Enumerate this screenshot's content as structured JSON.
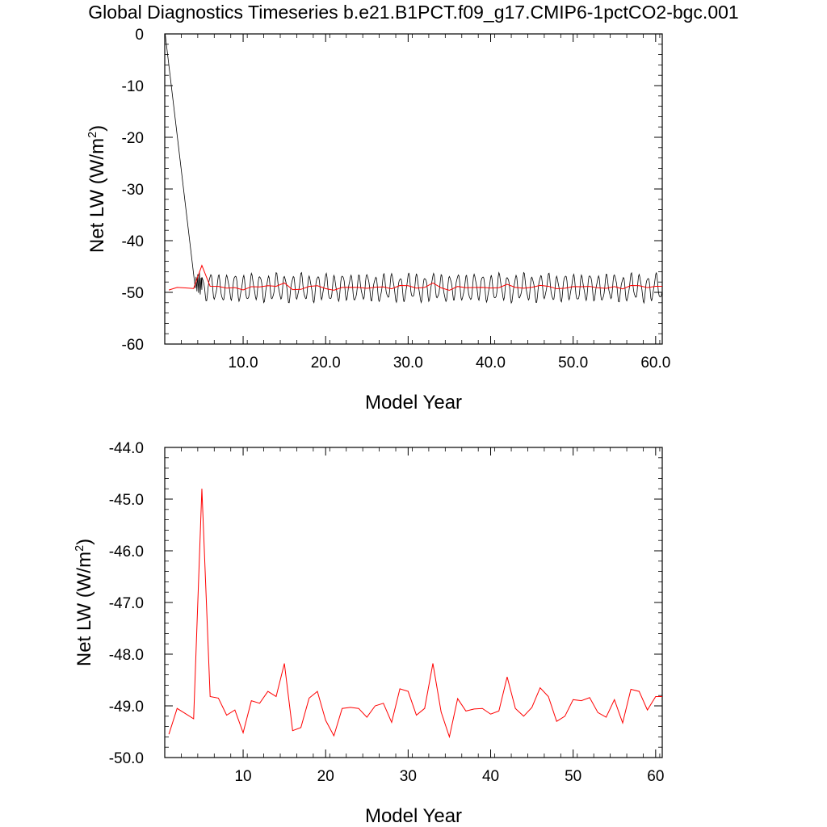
{
  "title": "Global Diagnostics Timeseries b.e21.B1PCT.f09_g17.CMIP6-1pctCO2-bgc.001",
  "colors": {
    "monthly": "#000000",
    "annual": "#ff0000",
    "frame": "#000000"
  },
  "chart_data": [
    {
      "type": "line",
      "xlabel": "Model Year",
      "ylabel": "Net LW (W/m²)",
      "ylabel_parts": {
        "main": "Net LW (W/m",
        "sup": "2",
        "end": ")"
      },
      "xlim": [
        0.5,
        60.8
      ],
      "ylim": [
        -60,
        0
      ],
      "xticks": [
        10,
        20,
        30,
        40,
        50,
        60
      ],
      "xtick_labels": [
        "10.0",
        "20.0",
        "30.0",
        "40.0",
        "50.0",
        "60.0"
      ],
      "yticks": [
        0,
        -10,
        -20,
        -30,
        -40,
        -50,
        -60
      ],
      "ytick_labels": [
        "0",
        "-10",
        "-20",
        "-30",
        "-40",
        "-50",
        "-60"
      ],
      "series": [
        {
          "key": "monthly",
          "color": "#000000",
          "x": [
            0.55,
            4.2,
            4.3,
            4.4,
            4.5,
            4.6,
            4.7,
            4.8,
            4.9,
            5.0
          ],
          "values": [
            0,
            -49.2,
            -47.0,
            -49.8,
            -46.5,
            -50.1,
            -46.0,
            -50.4,
            -47.2,
            -49.5
          ],
          "seasonal": {
            "start": 1,
            "end": 60.75,
            "amplitude": 2.6,
            "mean": -49.1
          }
        },
        {
          "key": "annual",
          "color": "#ff0000",
          "x": [
            1,
            2,
            3,
            4,
            5,
            6,
            7,
            8,
            9,
            10,
            11,
            12,
            13,
            14,
            15,
            16,
            17,
            18,
            19,
            20,
            21,
            22,
            23,
            24,
            25,
            26,
            27,
            28,
            29,
            30,
            31,
            32,
            33,
            34,
            35,
            36,
            37,
            38,
            39,
            40,
            41,
            42,
            43,
            44,
            45,
            46,
            47,
            48,
            49,
            50,
            51,
            52,
            53,
            54,
            55,
            56,
            57,
            58,
            59,
            60,
            61
          ],
          "values": [
            -49.55,
            -49.05,
            -49.15,
            -49.25,
            -44.8,
            -48.82,
            -48.85,
            -49.18,
            -49.08,
            -49.52,
            -48.9,
            -48.95,
            -48.72,
            -48.82,
            -48.18,
            -49.48,
            -49.42,
            -48.85,
            -48.72,
            -49.28,
            -49.58,
            -49.05,
            -49.03,
            -49.05,
            -49.22,
            -49.0,
            -48.95,
            -49.32,
            -48.67,
            -48.72,
            -49.18,
            -49.05,
            -48.18,
            -49.12,
            -49.6,
            -48.86,
            -49.1,
            -49.06,
            -49.05,
            -49.16,
            -49.1,
            -48.44,
            -49.05,
            -49.2,
            -49.03,
            -48.65,
            -48.82,
            -49.3,
            -49.2,
            -48.88,
            -48.9,
            -48.84,
            -49.13,
            -49.22,
            -48.88,
            -49.33,
            -48.68,
            -48.72,
            -49.08,
            -48.82,
            -48.82
          ]
        }
      ]
    },
    {
      "type": "line",
      "xlabel": "Model Year",
      "ylabel": "Net LW (W/m²)",
      "ylabel_parts": {
        "main": "Net LW (W/m",
        "sup": "2",
        "end": ")"
      },
      "xlim": [
        0.5,
        60.8
      ],
      "ylim": [
        -50,
        -44
      ],
      "xticks": [
        10,
        20,
        30,
        40,
        50,
        60
      ],
      "xtick_labels": [
        "10",
        "20",
        "30",
        "40",
        "50",
        "60"
      ],
      "yticks": [
        -44,
        -45,
        -46,
        -47,
        -48,
        -49,
        -50
      ],
      "ytick_labels": [
        "-44.0",
        "-45.0",
        "-46.0",
        "-47.0",
        "-48.0",
        "-49.0",
        "-50.0"
      ],
      "series": [
        {
          "key": "annual",
          "color": "#ff0000",
          "x": [
            1,
            2,
            3,
            4,
            5,
            6,
            7,
            8,
            9,
            10,
            11,
            12,
            13,
            14,
            15,
            16,
            17,
            18,
            19,
            20,
            21,
            22,
            23,
            24,
            25,
            26,
            27,
            28,
            29,
            30,
            31,
            32,
            33,
            34,
            35,
            36,
            37,
            38,
            39,
            40,
            41,
            42,
            43,
            44,
            45,
            46,
            47,
            48,
            49,
            50,
            51,
            52,
            53,
            54,
            55,
            56,
            57,
            58,
            59,
            60,
            61
          ],
          "values": [
            -49.55,
            -49.05,
            -49.15,
            -49.25,
            -44.8,
            -48.82,
            -48.85,
            -49.18,
            -49.08,
            -49.52,
            -48.9,
            -48.95,
            -48.72,
            -48.82,
            -48.18,
            -49.48,
            -49.42,
            -48.85,
            -48.72,
            -49.28,
            -49.58,
            -49.05,
            -49.03,
            -49.05,
            -49.22,
            -49.0,
            -48.95,
            -49.32,
            -48.67,
            -48.72,
            -49.18,
            -49.05,
            -48.18,
            -49.12,
            -49.6,
            -48.86,
            -49.1,
            -49.06,
            -49.05,
            -49.16,
            -49.1,
            -48.44,
            -49.05,
            -49.2,
            -49.03,
            -48.65,
            -48.82,
            -49.3,
            -49.2,
            -48.88,
            -48.9,
            -48.84,
            -49.13,
            -49.22,
            -48.88,
            -49.33,
            -48.68,
            -48.72,
            -49.08,
            -48.82,
            -48.82
          ]
        }
      ]
    }
  ]
}
